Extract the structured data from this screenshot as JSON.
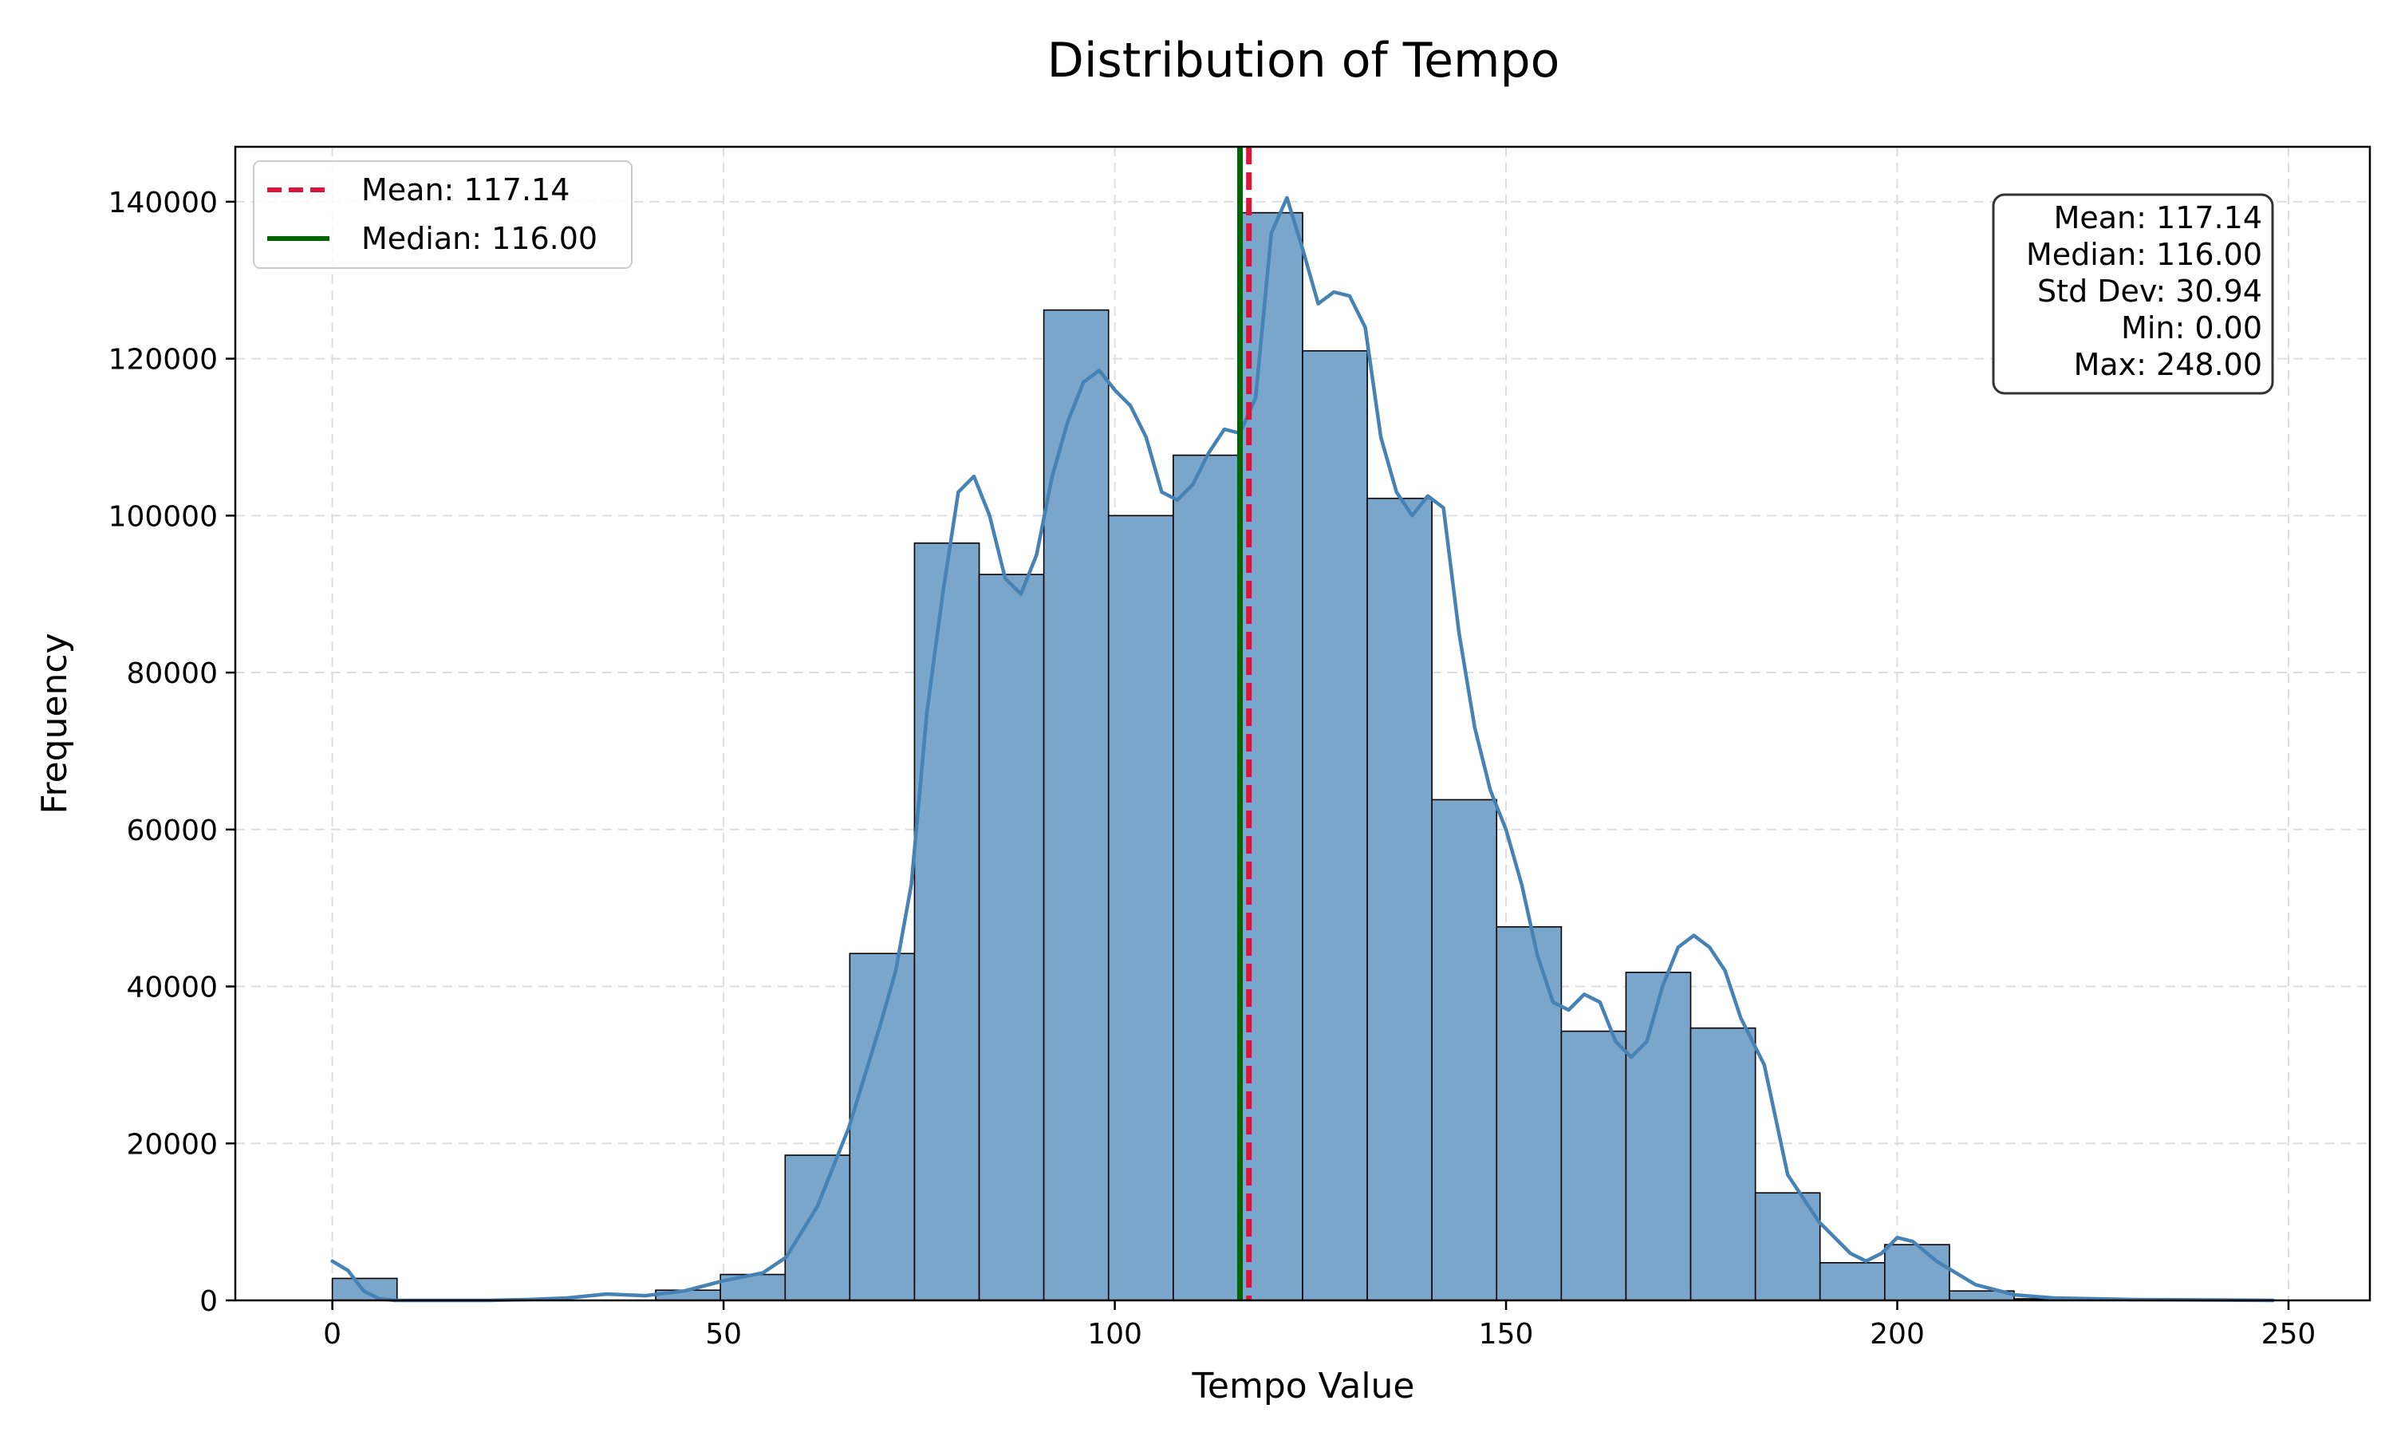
{
  "chart_data": {
    "type": "bar",
    "title": "Distribution of Tempo",
    "xlabel": "Tempo Value",
    "ylabel": "Frequency",
    "xlim": [
      -12.4,
      260.4
    ],
    "ylim": [
      0,
      147000
    ],
    "xticks": [
      0,
      50,
      100,
      150,
      200,
      250
    ],
    "yticks": [
      0,
      20000,
      40000,
      60000,
      80000,
      100000,
      120000,
      140000
    ],
    "grid": true,
    "bin_edges": [
      0,
      8.27,
      16.53,
      24.8,
      33.07,
      41.33,
      49.6,
      57.87,
      66.13,
      74.4,
      82.67,
      90.93,
      99.2,
      107.47,
      115.73,
      124,
      132.27,
      140.53,
      148.8,
      157.07,
      165.33,
      173.6,
      181.87,
      190.13,
      198.4,
      206.67,
      214.93,
      223.2,
      231.47,
      239.73,
      248
    ],
    "counts": [
      2800,
      0,
      0,
      0,
      0,
      1300,
      3300,
      18500,
      44200,
      96500,
      92500,
      126200,
      100000,
      107700,
      138600,
      121000,
      102200,
      63800,
      47600,
      34300,
      41800,
      34700,
      13700,
      4800,
      7100,
      1200,
      200,
      100,
      50,
      20
    ],
    "kde": {
      "x": [
        0,
        2,
        4,
        6,
        8,
        10,
        15,
        20,
        25,
        30,
        35,
        40,
        45,
        50,
        55,
        58,
        62,
        66,
        70,
        72,
        74,
        76,
        78,
        80,
        82,
        84,
        86,
        88,
        90,
        92,
        94,
        96,
        98,
        100,
        102,
        104,
        106,
        108,
        110,
        112,
        114,
        116,
        118,
        120,
        122,
        124,
        126,
        128,
        130,
        132,
        134,
        136,
        138,
        140,
        142,
        144,
        146,
        148,
        150,
        152,
        154,
        156,
        158,
        160,
        162,
        164,
        166,
        168,
        170,
        172,
        174,
        176,
        178,
        180,
        183,
        186,
        190,
        194,
        196,
        198,
        200,
        202,
        205,
        210,
        215,
        220,
        230,
        240,
        248
      ],
      "y": [
        5000,
        3800,
        1200,
        200,
        0,
        0,
        0,
        0,
        100,
        300,
        800,
        600,
        1200,
        2500,
        3500,
        5500,
        12000,
        22000,
        35000,
        42000,
        53000,
        75000,
        90000,
        103000,
        105000,
        100000,
        92000,
        90000,
        95000,
        105000,
        112000,
        117000,
        118500,
        116000,
        114000,
        110000,
        103000,
        102000,
        104000,
        108000,
        111000,
        110500,
        115000,
        136000,
        140500,
        134000,
        127000,
        128500,
        128000,
        124000,
        110000,
        103000,
        100000,
        102500,
        101000,
        85000,
        73000,
        65000,
        60000,
        53000,
        44000,
        38000,
        37000,
        39000,
        38000,
        33000,
        31000,
        33000,
        40000,
        45000,
        46500,
        45000,
        42000,
        36000,
        30000,
        16000,
        10000,
        6000,
        5000,
        6000,
        8000,
        7500,
        5000,
        2000,
        700,
        300,
        100,
        50,
        0
      ]
    },
    "lines": [
      {
        "name": "Mean: 117.14",
        "x": 117.14,
        "color": "#dc143c",
        "style": "dashed"
      },
      {
        "name": "Median: 116.00",
        "x": 116.0,
        "color": "#006400",
        "style": "solid"
      }
    ],
    "legend_position": "top-left",
    "stats_box": {
      "lines": [
        "Mean: 117.14",
        "Median: 116.00",
        "Std Dev: 30.94",
        "Min: 0.00",
        "Max: 248.00"
      ],
      "position": "top-right"
    },
    "colors": {
      "bar_fill": "#7aa6cc",
      "bar_edge": "#000000",
      "kde_line": "#4682b4",
      "grid": "#dddddd"
    }
  }
}
